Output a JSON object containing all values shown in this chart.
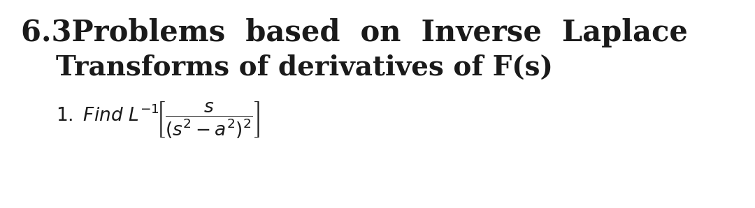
{
  "title_line1": "6.3Problems  based  on  Inverse  Laplace",
  "title_line2": "Transforms of derivatives of F(s)",
  "background_color": "#ffffff",
  "text_color": "#1a1a1a",
  "title_fontsize": 30,
  "subtitle_fontsize": 28,
  "math_fontsize": 19,
  "fig_width": 10.8,
  "fig_height": 2.98
}
